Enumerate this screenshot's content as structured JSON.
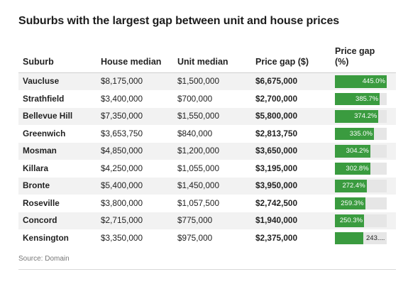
{
  "title": "Suburbs with the largest gap between unit and house prices",
  "source": "Source: Domain",
  "colors": {
    "bar": "#3a9b3f",
    "bar_track": "#e6e6e6",
    "row_stripe": "#f2f2f2"
  },
  "chart_data": {
    "type": "table",
    "columns": [
      "Suburb",
      "House median",
      "Unit median",
      "Price gap ($)",
      "Price gap (%)"
    ],
    "bar_max": 445.0,
    "rows": [
      {
        "suburb": "Vaucluse",
        "house": "$8,175,000",
        "unit": "$1,500,000",
        "gap": "$6,675,000",
        "pct": 445.0,
        "pct_label": "445.0%"
      },
      {
        "suburb": "Strathfield",
        "house": "$3,400,000",
        "unit": "$700,000",
        "gap": "$2,700,000",
        "pct": 385.7,
        "pct_label": "385.7%"
      },
      {
        "suburb": "Bellevue Hill",
        "house": "$7,350,000",
        "unit": "$1,550,000",
        "gap": "$5,800,000",
        "pct": 374.2,
        "pct_label": "374.2%"
      },
      {
        "suburb": "Greenwich",
        "house": "$3,653,750",
        "unit": "$840,000",
        "gap": "$2,813,750",
        "pct": 335.0,
        "pct_label": "335.0%"
      },
      {
        "suburb": "Mosman",
        "house": "$4,850,000",
        "unit": "$1,200,000",
        "gap": "$3,650,000",
        "pct": 304.2,
        "pct_label": "304.2%"
      },
      {
        "suburb": "Killara",
        "house": "$4,250,000",
        "unit": "$1,055,000",
        "gap": "$3,195,000",
        "pct": 302.8,
        "pct_label": "302.8%"
      },
      {
        "suburb": "Bronte",
        "house": "$5,400,000",
        "unit": "$1,450,000",
        "gap": "$3,950,000",
        "pct": 272.4,
        "pct_label": "272.4%"
      },
      {
        "suburb": "Roseville",
        "house": "$3,800,000",
        "unit": "$1,057,500",
        "gap": "$2,742,500",
        "pct": 259.3,
        "pct_label": "259.3%"
      },
      {
        "suburb": "Concord",
        "house": "$2,715,000",
        "unit": "$775,000",
        "gap": "$1,940,000",
        "pct": 250.3,
        "pct_label": "250.3%"
      },
      {
        "suburb": "Kensington",
        "house": "$3,350,000",
        "unit": "$975,000",
        "gap": "$2,375,000",
        "pct": 243.6,
        "pct_label": "243...."
      }
    ]
  }
}
